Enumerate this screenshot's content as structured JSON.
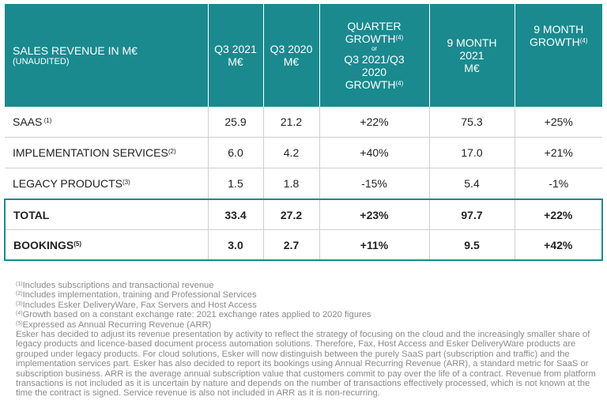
{
  "table": {
    "header": {
      "label_main": "SALES REVENUE IN M€",
      "label_sub": "(UNAUDITED)",
      "q3_2021": [
        "Q3 2021",
        "M€"
      ],
      "q3_2020": [
        "Q3 2020",
        "M€"
      ],
      "quarter_growth_top": "QUARTER GROWTH",
      "quarter_growth_sup": "(4)",
      "or": "or",
      "quarter_growth_l2": "Q3 2021/Q3",
      "quarter_growth_l3": "2020",
      "quarter_growth_l4": "GROWTH",
      "quarter_growth_l4_sup": "(4)",
      "nine_month": [
        "9 MONTH",
        "2021",
        "M€"
      ],
      "nine_growth_l1": "9 MONTH",
      "nine_growth_l2": "GROWTH",
      "nine_growth_sup": "(4)"
    },
    "rows": [
      {
        "label": "SAAS",
        "sup": " (1)",
        "q3_2021": "25.9",
        "q3_2020": "21.2",
        "q_growth": "+22%",
        "nine_month": "75.3",
        "nine_growth": "+25%"
      },
      {
        "label": "IMPLEMENTATION SERVICES",
        "sup": "(2)",
        "q3_2021": "6.0",
        "q3_2020": "4.2",
        "q_growth": "+40%",
        "nine_month": "17.0",
        "nine_growth": "+21%"
      },
      {
        "label": "LEGACY PRODUCTS",
        "sup": "(3)",
        "q3_2021": "1.5",
        "q3_2020": "1.8",
        "q_growth": "-15%",
        "nine_month": "5.4",
        "nine_growth": "-1%"
      },
      {
        "label": "TOTAL",
        "sup": "",
        "q3_2021": "33.4",
        "q3_2020": "27.2",
        "q_growth": "+23%",
        "nine_month": "97.7",
        "nine_growth": "+22%"
      },
      {
        "label": "BOOKINGS",
        "sup": "(5)",
        "q3_2021": "3.0",
        "q3_2020": "2.7",
        "q_growth": "+11%",
        "nine_month": "9.5",
        "nine_growth": "+42%"
      }
    ]
  },
  "footnotes": [
    {
      "mark": "(1)",
      "text": "Includes subscriptions and transactional revenue"
    },
    {
      "mark": "(2)",
      "text": "Includes implementation, training and Professional Services"
    },
    {
      "mark": "(3)",
      "text": "Includes Esker DeliveryWare, Fax Servers and Host Access"
    },
    {
      "mark": "(4)",
      "text": "Growth based on a constant exchange rate: 2021 exchange rates applied to 2020 figures"
    },
    {
      "mark": "(5)",
      "text": "Expressed as Annual Recurring Revenue (ARR)"
    }
  ],
  "paragraph": "Esker has decided to adjust its revenue presentation by activity to reflect the strategy of focusing on the cloud and the increasingly smaller share of legacy products and licence-based document process automation solutions. Therefore, Fax, Host Access and Esker DeliveryWare products are grouped under legacy products. For cloud solutions, Esker will now distinguish between the purely SaaS part (subscription and traffic) and the implementation services part. Esker has also decided to report its bookings using Annual Recurring Revenue (ARR), a standard metric for SaaS or subscription business. ARR is the average annual subscription value that customers commit to pay over the life of a contract. Revenue from platform transactions is not included as it is uncertain by nature and depends on the number of transactions effectively processed, which is not known at the time the contract is signed. Service revenue is also not included in ARR as it is non-recurring."
}
